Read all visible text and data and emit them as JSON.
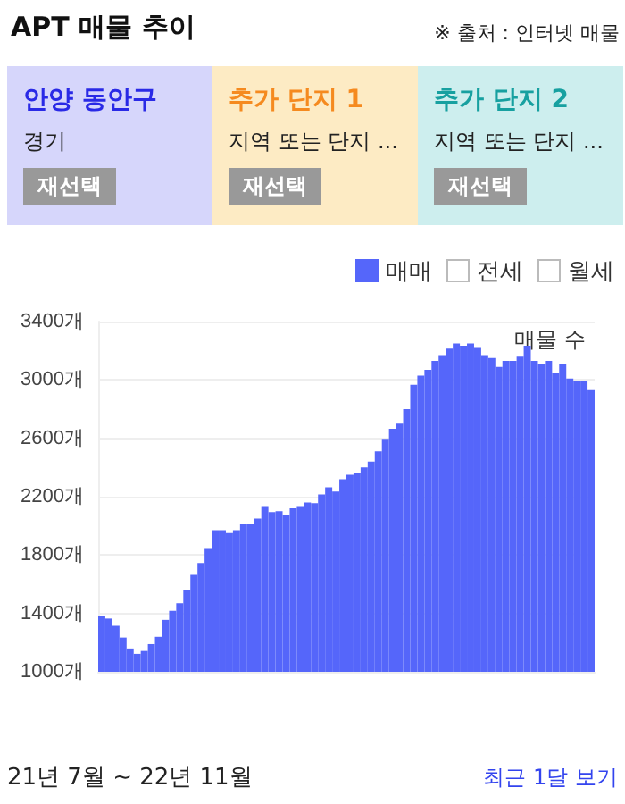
{
  "chart_data": {
    "type": "bar",
    "title": "APT 매물 추이",
    "ylabel": "매물 수",
    "annotations": [
      "※ 출처 : 인터넷 매물",
      "안양 동안구",
      "경기",
      "재선택",
      "추가 단지 1",
      "지역 또는 단지 ...",
      "재선택",
      "추가 단지 2",
      "지역 또는 단지 ...",
      "재선택",
      "전세",
      "월세",
      "21년 7월 ~ 22년 11월",
      "최근 1달 보기"
    ],
    "categories": [
      null,
      null,
      null,
      null,
      null,
      null,
      null,
      null,
      null,
      null,
      null,
      null,
      null,
      null,
      null,
      null,
      null,
      null,
      null,
      null,
      null,
      null,
      null,
      null,
      null,
      null,
      null,
      null,
      null,
      null,
      null,
      null,
      null,
      null,
      null,
      null,
      null,
      null,
      null,
      null,
      null,
      null,
      null,
      null,
      null,
      null,
      null,
      null,
      null,
      null,
      null,
      null,
      null,
      null,
      null,
      null,
      null,
      null,
      null,
      null,
      null,
      null,
      null,
      null,
      null,
      null,
      null,
      null,
      null,
      null
    ],
    "series": [
      {
        "name": "매매",
        "color": "#5566fa",
        "values": [
          1385,
          1365,
          1315,
          1235,
          1160,
          1123,
          1143,
          1190,
          1240,
          1356,
          1418,
          1470,
          1560,
          1665,
          1745,
          1848,
          1970,
          1970,
          1950,
          1970,
          2010,
          2010,
          2050,
          2135,
          2095,
          2100,
          2075,
          2120,
          2135,
          2160,
          2155,
          2215,
          2265,
          2235,
          2320,
          2350,
          2360,
          2400,
          2440,
          2510,
          2596,
          2666,
          2700,
          2800,
          2967,
          3030,
          3070,
          3130,
          3170,
          3215,
          3250,
          3235,
          3250,
          3225,
          3170,
          3150,
          3090,
          3130,
          3130,
          3160,
          3235,
          3130,
          3110,
          3130,
          3050,
          3110,
          3010,
          2990,
          2990,
          2930
        ]
      }
    ],
    "ylim": [
      1000,
      3400
    ],
    "yticks": [
      {
        "value": 1000,
        "label": "1000개"
      },
      {
        "value": 1400,
        "label": "1400개"
      },
      {
        "value": 1800,
        "label": "1800개"
      },
      {
        "value": 2200,
        "label": "2200개"
      },
      {
        "value": 2600,
        "label": "2600개"
      },
      {
        "value": 3000,
        "label": "3000개"
      },
      {
        "value": 3400,
        "label": "3400개"
      }
    ],
    "grid": "y",
    "legend": "top right",
    "tick_labels": "y"
  }
}
